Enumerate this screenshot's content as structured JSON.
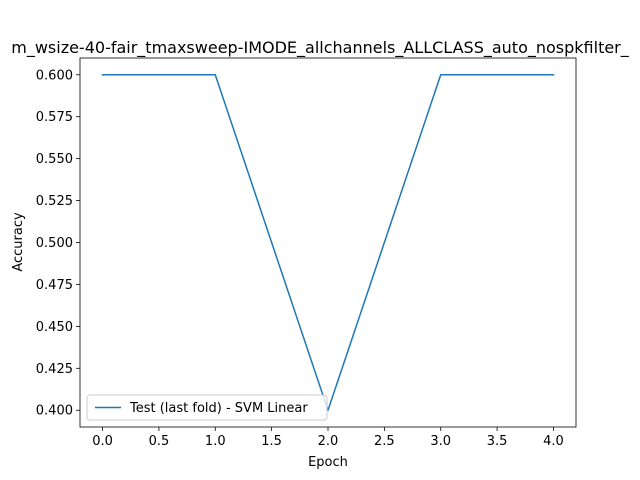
{
  "chart_data": {
    "type": "line",
    "title": "m_wsize-40-fair_tmaxsweep-IMODE_allchannels_ALLCLASS_auto_nospkfilter_",
    "xlabel": "Epoch",
    "ylabel": "Accuracy",
    "xlim": [
      -0.2,
      4.2
    ],
    "ylim": [
      0.39,
      0.61
    ],
    "xticks": [
      0.0,
      0.5,
      1.0,
      1.5,
      2.0,
      2.5,
      3.0,
      3.5,
      4.0
    ],
    "xtick_labels": [
      "0.0",
      "0.5",
      "1.0",
      "1.5",
      "2.0",
      "2.5",
      "3.0",
      "3.5",
      "4.0"
    ],
    "yticks": [
      0.4,
      0.425,
      0.45,
      0.475,
      0.5,
      0.525,
      0.55,
      0.575,
      0.6
    ],
    "ytick_labels": [
      "0.400",
      "0.425",
      "0.450",
      "0.475",
      "0.500",
      "0.525",
      "0.550",
      "0.575",
      "0.600"
    ],
    "grid": false,
    "legend_position": "lower-left",
    "series": [
      {
        "name": "Test (last fold) - SVM Linear",
        "color": "#1f77b4",
        "x": [
          0,
          1,
          2,
          3,
          4
        ],
        "y": [
          0.6,
          0.6,
          0.4,
          0.6,
          0.6
        ]
      }
    ]
  }
}
